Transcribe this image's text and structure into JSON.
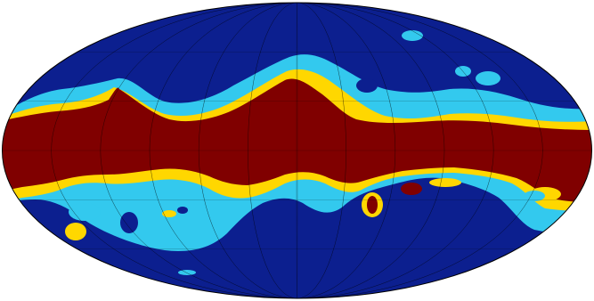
{
  "map": {
    "projection": "mollweide",
    "background_color": "#ffffff",
    "outline_color": "#000000",
    "graticule_color": "#000000",
    "regions": [
      {
        "name": "outer-region",
        "color": "#0c1f8f"
      },
      {
        "name": "light-blue-region",
        "color": "#33c9ee"
      },
      {
        "name": "yellow-region",
        "color": "#ffd700"
      },
      {
        "name": "dark-red-region",
        "color": "#800000"
      }
    ],
    "meridian_count": 12,
    "parallel_count": 6
  }
}
